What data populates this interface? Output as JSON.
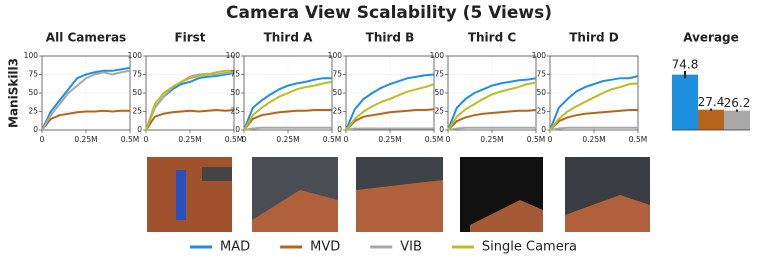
{
  "title": "Camera View Scalability (5 Views)",
  "row_label": "ManiSkill3",
  "chart_data": [
    {
      "type": "line",
      "title": "All Cameras",
      "x": [
        0,
        50000,
        100000,
        150000,
        200000,
        250000,
        300000,
        350000,
        400000,
        450000,
        500000
      ],
      "xlim": [
        0,
        500000
      ],
      "xticks": [
        0,
        {
          "value": 250000,
          "label": "0.25M"
        },
        {
          "value": 500000,
          "label": "0.5M"
        }
      ],
      "ylim": [
        0,
        100
      ],
      "yticks": [
        0,
        25,
        50,
        75,
        100
      ],
      "grid": true,
      "series": [
        {
          "name": "MAD",
          "color": "#1f8fe0",
          "values": [
            0,
            25,
            40,
            55,
            70,
            75,
            78,
            80,
            80,
            82,
            84
          ]
        },
        {
          "name": "MVD",
          "color": "#b5651d",
          "values": [
            0,
            15,
            20,
            22,
            24,
            25,
            25,
            26,
            25,
            26,
            26
          ]
        },
        {
          "name": "VIB",
          "color": "#a8a8a8",
          "values": [
            0,
            20,
            35,
            50,
            60,
            70,
            75,
            78,
            75,
            78,
            80
          ]
        }
      ]
    },
    {
      "type": "line",
      "title": "First",
      "x": [
        0,
        50000,
        100000,
        150000,
        200000,
        250000,
        300000,
        350000,
        400000,
        450000,
        500000
      ],
      "xlim": [
        0,
        500000
      ],
      "xticks": [
        0,
        {
          "value": 250000,
          "label": "0.25M"
        },
        {
          "value": 500000,
          "label": "0.5M"
        }
      ],
      "ylim": [
        0,
        100
      ],
      "yticks": [
        0,
        25,
        50,
        75,
        100
      ],
      "grid": true,
      "series": [
        {
          "name": "MAD",
          "color": "#1f8fe0",
          "values": [
            0,
            30,
            45,
            55,
            62,
            65,
            70,
            72,
            73,
            75,
            77
          ]
        },
        {
          "name": "MVD",
          "color": "#b5651d",
          "values": [
            0,
            18,
            22,
            24,
            25,
            26,
            25,
            26,
            27,
            26,
            27
          ]
        },
        {
          "name": "VIB",
          "color": "#a8a8a8",
          "values": [
            0,
            30,
            45,
            58,
            65,
            72,
            75,
            76,
            75,
            77,
            78
          ]
        },
        {
          "name": "Single Camera",
          "color": "#bcbd22",
          "values": [
            0,
            35,
            50,
            58,
            65,
            70,
            73,
            75,
            78,
            80,
            80
          ]
        }
      ]
    },
    {
      "type": "line",
      "title": "Third A",
      "x": [
        0,
        50000,
        100000,
        150000,
        200000,
        250000,
        300000,
        350000,
        400000,
        450000,
        500000
      ],
      "xlim": [
        0,
        500000
      ],
      "xticks": [
        0,
        {
          "value": 250000,
          "label": "0.25M"
        },
        {
          "value": 500000,
          "label": "0.5M"
        }
      ],
      "ylim": [
        0,
        100
      ],
      "yticks": [
        0,
        25,
        50,
        75,
        100
      ],
      "grid": true,
      "series": [
        {
          "name": "MAD",
          "color": "#1f8fe0",
          "values": [
            0,
            30,
            40,
            48,
            55,
            60,
            63,
            65,
            68,
            70,
            70
          ]
        },
        {
          "name": "MVD",
          "color": "#b5651d",
          "values": [
            0,
            15,
            20,
            22,
            24,
            25,
            26,
            26,
            27,
            27,
            27
          ]
        },
        {
          "name": "VIB",
          "color": "#a8a8a8",
          "values": [
            0,
            2,
            3,
            3,
            3,
            3,
            3,
            3,
            3,
            3,
            3
          ]
        },
        {
          "name": "Single Camera",
          "color": "#bcbd22",
          "values": [
            0,
            20,
            30,
            38,
            45,
            50,
            55,
            58,
            60,
            63,
            65
          ]
        }
      ]
    },
    {
      "type": "line",
      "title": "Third B",
      "x": [
        0,
        50000,
        100000,
        150000,
        200000,
        250000,
        300000,
        350000,
        400000,
        450000,
        500000
      ],
      "xlim": [
        0,
        500000
      ],
      "xticks": [
        0,
        {
          "value": 250000,
          "label": "0.25M"
        },
        {
          "value": 500000,
          "label": "0.5M"
        }
      ],
      "ylim": [
        0,
        100
      ],
      "yticks": [
        0,
        25,
        50,
        75,
        100
      ],
      "grid": true,
      "series": [
        {
          "name": "MAD",
          "color": "#1f8fe0",
          "values": [
            0,
            28,
            42,
            50,
            57,
            62,
            66,
            70,
            72,
            74,
            75
          ]
        },
        {
          "name": "MVD",
          "color": "#b5651d",
          "values": [
            0,
            12,
            18,
            20,
            22,
            24,
            25,
            26,
            27,
            27,
            28
          ]
        },
        {
          "name": "VIB",
          "color": "#a8a8a8",
          "values": [
            0,
            2,
            2,
            2,
            2,
            2,
            2,
            2,
            2,
            2,
            2
          ]
        },
        {
          "name": "Single Camera",
          "color": "#bcbd22",
          "values": [
            0,
            15,
            25,
            32,
            38,
            42,
            47,
            52,
            55,
            58,
            62
          ]
        }
      ]
    },
    {
      "type": "line",
      "title": "Third C",
      "x": [
        0,
        50000,
        100000,
        150000,
        200000,
        250000,
        300000,
        350000,
        400000,
        450000,
        500000
      ],
      "xlim": [
        0,
        500000
      ],
      "xticks": [
        0,
        {
          "value": 250000,
          "label": "0.25M"
        },
        {
          "value": 500000,
          "label": "0.5M"
        }
      ],
      "ylim": [
        0,
        100
      ],
      "yticks": [
        0,
        25,
        50,
        75,
        100
      ],
      "grid": true,
      "series": [
        {
          "name": "MAD",
          "color": "#1f8fe0",
          "values": [
            0,
            30,
            42,
            50,
            55,
            60,
            63,
            65,
            67,
            68,
            70
          ]
        },
        {
          "name": "MVD",
          "color": "#b5651d",
          "values": [
            0,
            12,
            17,
            20,
            22,
            23,
            24,
            25,
            26,
            26,
            27
          ]
        },
        {
          "name": "VIB",
          "color": "#a8a8a8",
          "values": [
            0,
            2,
            3,
            3,
            3,
            3,
            3,
            3,
            3,
            3,
            3
          ]
        },
        {
          "name": "Single Camera",
          "color": "#bcbd22",
          "values": [
            0,
            18,
            28,
            35,
            42,
            48,
            52,
            55,
            58,
            62,
            64
          ]
        }
      ]
    },
    {
      "type": "line",
      "title": "Third D",
      "x": [
        0,
        50000,
        100000,
        150000,
        200000,
        250000,
        300000,
        350000,
        400000,
        450000,
        500000
      ],
      "xlim": [
        0,
        500000
      ],
      "xticks": [
        0,
        {
          "value": 250000,
          "label": "0.25M"
        },
        {
          "value": 500000,
          "label": "0.5M"
        }
      ],
      "ylim": [
        0,
        100
      ],
      "yticks": [
        0,
        25,
        50,
        75,
        100
      ],
      "grid": true,
      "series": [
        {
          "name": "MAD",
          "color": "#1f8fe0",
          "values": [
            0,
            30,
            42,
            52,
            58,
            62,
            66,
            68,
            70,
            70,
            73
          ]
        },
        {
          "name": "MVD",
          "color": "#b5651d",
          "values": [
            0,
            12,
            17,
            20,
            22,
            23,
            24,
            25,
            26,
            27,
            27
          ]
        },
        {
          "name": "VIB",
          "color": "#a8a8a8",
          "values": [
            0,
            2,
            3,
            3,
            3,
            3,
            3,
            3,
            3,
            3,
            3
          ]
        },
        {
          "name": "Single Camera",
          "color": "#bcbd22",
          "values": [
            0,
            15,
            25,
            32,
            38,
            44,
            50,
            55,
            58,
            62,
            63
          ]
        }
      ]
    },
    {
      "type": "bar",
      "title": "Average",
      "categories": [
        null,
        null,
        null
      ],
      "values": [
        74.8,
        27.4,
        26.2
      ],
      "errors": [
        5,
        1.5,
        1.5
      ],
      "colors": [
        "#1f8fe0",
        "#b5651d",
        "#a8a8a8"
      ],
      "ylim": [
        0,
        100
      ]
    }
  ]
}
